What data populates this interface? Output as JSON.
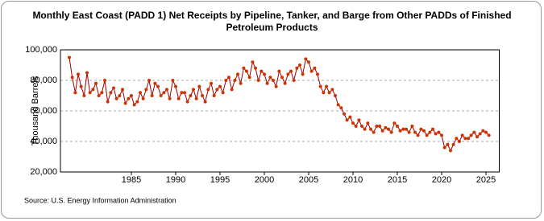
{
  "chart_data": {
    "type": "line",
    "title": "Monthly East Coast (PADD 1) Net Receipts by Pipeline, Tanker, and Barge from Other PADDs of Finished Petroleum Products",
    "y_label": "Thousand Barrels",
    "source": "Source: U.S. Energy Information Administration",
    "line_color": "#990000",
    "marker_color": "#cc3300",
    "grid": true,
    "xlim": [
      1977,
      2026.5
    ],
    "xticks": [
      1985,
      1990,
      1995,
      2000,
      2005,
      2010,
      2015,
      2020,
      2025
    ],
    "ylim": [
      20000,
      100000
    ],
    "yticks": [
      {
        "value": 20000,
        "label": "20,000"
      },
      {
        "value": 40000,
        "label": "40,000"
      },
      {
        "value": 60000,
        "label": "60,000"
      },
      {
        "value": 80000,
        "label": "80,000"
      },
      {
        "value": 100000,
        "label": "100,000"
      }
    ],
    "x": [
      1978,
      1978.33,
      1978.67,
      1979,
      1979.33,
      1979.67,
      1980,
      1980.33,
      1980.67,
      1981,
      1981.33,
      1981.67,
      1982,
      1982.33,
      1982.67,
      1983,
      1983.33,
      1983.67,
      1984,
      1984.33,
      1984.67,
      1985,
      1985.33,
      1985.67,
      1986,
      1986.33,
      1986.67,
      1987,
      1987.33,
      1987.67,
      1988,
      1988.33,
      1988.67,
      1989,
      1989.33,
      1989.67,
      1990,
      1990.33,
      1990.67,
      1991,
      1991.33,
      1991.67,
      1992,
      1992.33,
      1992.67,
      1993,
      1993.33,
      1993.67,
      1994,
      1994.33,
      1994.67,
      1995,
      1995.33,
      1995.67,
      1996,
      1996.33,
      1996.67,
      1997,
      1997.33,
      1997.67,
      1998,
      1998.33,
      1998.67,
      1999,
      1999.33,
      1999.67,
      2000,
      2000.33,
      2000.67,
      2001,
      2001.33,
      2001.67,
      2002,
      2002.33,
      2002.67,
      2003,
      2003.33,
      2003.67,
      2004,
      2004.33,
      2004.67,
      2005,
      2005.33,
      2005.67,
      2006,
      2006.33,
      2006.67,
      2007,
      2007.33,
      2007.67,
      2008,
      2008.33,
      2008.67,
      2009,
      2009.33,
      2009.67,
      2010,
      2010.33,
      2010.67,
      2011,
      2011.33,
      2011.67,
      2012,
      2012.33,
      2012.67,
      2013,
      2013.33,
      2013.67,
      2014,
      2014.33,
      2014.67,
      2015,
      2015.33,
      2015.67,
      2016,
      2016.33,
      2016.67,
      2017,
      2017.33,
      2017.67,
      2018,
      2018.33,
      2018.67,
      2019,
      2019.33,
      2019.67,
      2020,
      2020.33,
      2020.67,
      2021,
      2021.33,
      2021.67,
      2022,
      2022.33,
      2022.67,
      2023,
      2023.33,
      2023.67,
      2024,
      2024.33,
      2024.67,
      2025,
      2025.33
    ],
    "values": [
      95000,
      82000,
      72000,
      84000,
      76000,
      70000,
      85000,
      72000,
      74000,
      78000,
      70000,
      72000,
      80000,
      66000,
      72000,
      75000,
      68000,
      70000,
      74000,
      65000,
      68000,
      70000,
      64000,
      66000,
      72000,
      68000,
      74000,
      80000,
      70000,
      78000,
      76000,
      70000,
      72000,
      74000,
      68000,
      80000,
      76000,
      68000,
      72000,
      72000,
      66000,
      70000,
      74000,
      68000,
      76000,
      70000,
      66000,
      74000,
      78000,
      70000,
      74000,
      76000,
      72000,
      80000,
      82000,
      74000,
      80000,
      84000,
      78000,
      88000,
      86000,
      82000,
      92000,
      88000,
      80000,
      86000,
      84000,
      78000,
      82000,
      80000,
      76000,
      86000,
      82000,
      78000,
      84000,
      86000,
      80000,
      88000,
      90000,
      84000,
      94000,
      92000,
      86000,
      88000,
      84000,
      76000,
      72000,
      76000,
      72000,
      74000,
      70000,
      64000,
      62000,
      58000,
      54000,
      56000,
      52000,
      50000,
      54000,
      50000,
      48000,
      52000,
      48000,
      46000,
      50000,
      50000,
      47000,
      49000,
      48000,
      46000,
      52000,
      50000,
      47000,
      48000,
      48000,
      46000,
      50000,
      46000,
      44000,
      48000,
      47000,
      44000,
      46000,
      48000,
      45000,
      46000,
      44000,
      36000,
      38000,
      34000,
      38000,
      42000,
      40000,
      44000,
      42000,
      42000,
      44000,
      46000,
      43000,
      45000,
      47000,
      46000,
      44000
    ]
  }
}
